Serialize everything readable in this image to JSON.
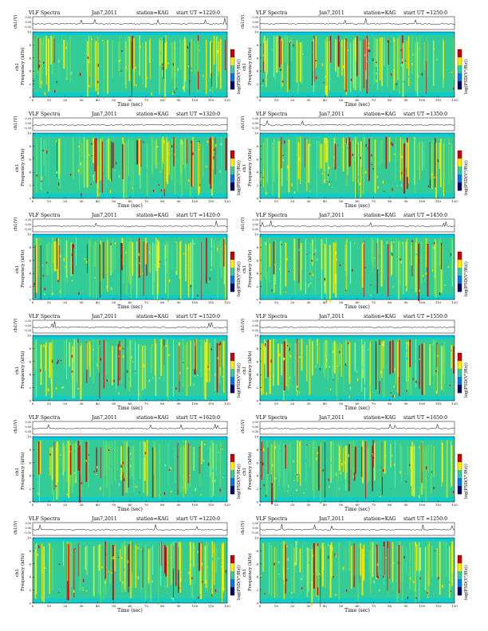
{
  "page": {
    "panels": [
      {
        "col": 0,
        "row": 0,
        "header": {
          "title": "VLF Spectra",
          "date": "Jan7,2011",
          "station": "station=KAG",
          "start": "start  UT  =1220:0"
        }
      },
      {
        "col": 1,
        "row": 0,
        "header": {
          "title": "VLF Spectra",
          "date": "Jan7,2011",
          "station": "station=KAG",
          "start": "start  UT  =1250:0"
        }
      },
      {
        "col": 0,
        "row": 1,
        "header": {
          "title": "VLF Spectra",
          "date": "Jan7,2011",
          "station": "station=KAG",
          "start": "start  UT  =1320:0"
        }
      },
      {
        "col": 1,
        "row": 1,
        "header": {
          "title": "VLF Spectra",
          "date": "Jan7,2011",
          "station": "station=KAG",
          "start": "start  UT  =1350:0"
        }
      },
      {
        "col": 0,
        "row": 2,
        "header": {
          "title": "VLF Spectra",
          "date": "Jan7,2011",
          "station": "station=KAG",
          "start": "start  UT  =1420:0"
        }
      },
      {
        "col": 1,
        "row": 2,
        "header": {
          "title": "VLF Spectra",
          "date": "Jan7,2011",
          "station": "station=KAG",
          "start": "start  UT  =1450:0"
        }
      },
      {
        "col": 0,
        "row": 3,
        "header": {
          "title": "VLF Spectra",
          "date": "Jan7,2011",
          "station": "station=KAG",
          "start": "start  UT  =1520:0"
        }
      },
      {
        "col": 1,
        "row": 3,
        "header": {
          "title": "VLF Spectra",
          "date": "Jan7,2011",
          "station": "station=KAG",
          "start": "start  UT  =1550:0"
        }
      },
      {
        "col": 0,
        "row": 4,
        "header": {
          "title": "VLF Spectra",
          "date": "Jan7,2011",
          "station": "station=KAG",
          "start": "start  UT  =1620:0"
        }
      },
      {
        "col": 1,
        "row": 4,
        "header": {
          "title": "VLF Spectra",
          "date": "Jan7,2011",
          "station": "station=KAG",
          "start": "start  UT  =1650:0"
        }
      },
      {
        "col": 0,
        "row": 5,
        "header": {
          "title": "VLF Spectra",
          "date": "Jan7,2011",
          "station": "station=KAG",
          "start": "start  UT  =1220:0"
        }
      },
      {
        "col": 1,
        "row": 5,
        "header": {
          "title": "VLF Spectra",
          "date": "Jan7,2011",
          "station": "station=KAG",
          "start": "start  UT  =1250:0"
        }
      }
    ]
  },
  "chart_data": {
    "type": "heatmap",
    "panel_count": 12,
    "layout": "6 rows x 2 columns",
    "x_axis": {
      "label": "Time  (sec)",
      "range": [
        0,
        120
      ],
      "ticks": [
        0,
        10,
        20,
        30,
        40,
        50,
        60,
        70,
        80,
        90,
        100,
        110,
        120
      ]
    },
    "y_axis": {
      "label_top": "ch1",
      "label_bottom": "Frequency  (kHz)",
      "range": [
        0,
        10
      ],
      "ticks": [
        0,
        2,
        4,
        6,
        8,
        10
      ]
    },
    "waveform_axis": {
      "label": "ch1(V)",
      "ticks": [
        "0.30",
        "0.00",
        "-0.30"
      ]
    },
    "colorbar": {
      "label": "log(PSD(V²/Hz))"
    },
    "colors": {
      "background": "#33cc99",
      "low": "#00ccdd",
      "mid": "#66dd66",
      "high": "#ffee00",
      "peak": "#cc0000",
      "colorbar_top": "#cc0000",
      "colorbar_upper": "#ffee00",
      "colorbar_mid": "#33cc99",
      "colorbar_lower": "#0077ee",
      "colorbar_bottom": "#000066"
    },
    "grid": false
  }
}
